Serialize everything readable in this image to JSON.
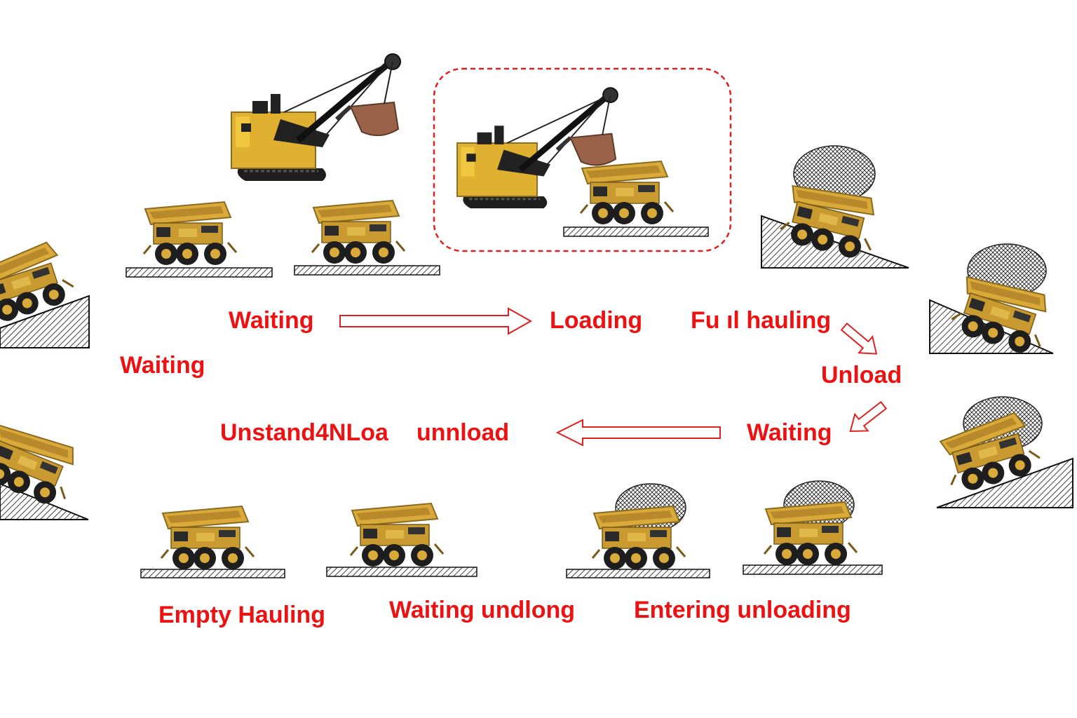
{
  "labels": {
    "waiting_top": "Waiting",
    "loading": "Loading",
    "full_hauling": "Fu ıl hauling",
    "waiting_left": "Waiting",
    "unload": "Unload",
    "waiting_right": "Waiting",
    "unstand": "Unstand4NLoa",
    "unnload": "unnload",
    "empty_hauling": "Empty Hauling",
    "waiting_undlong": "Waiting undlong",
    "entering_unloading": "Entering unloading"
  },
  "colors": {
    "label": "#ee1111",
    "arrow": "#e02020",
    "truck_body": "#d9a93a",
    "truck_dark": "#8a6a1e",
    "tire": "#1e1e1e",
    "shovel_body": "#e0b030"
  }
}
